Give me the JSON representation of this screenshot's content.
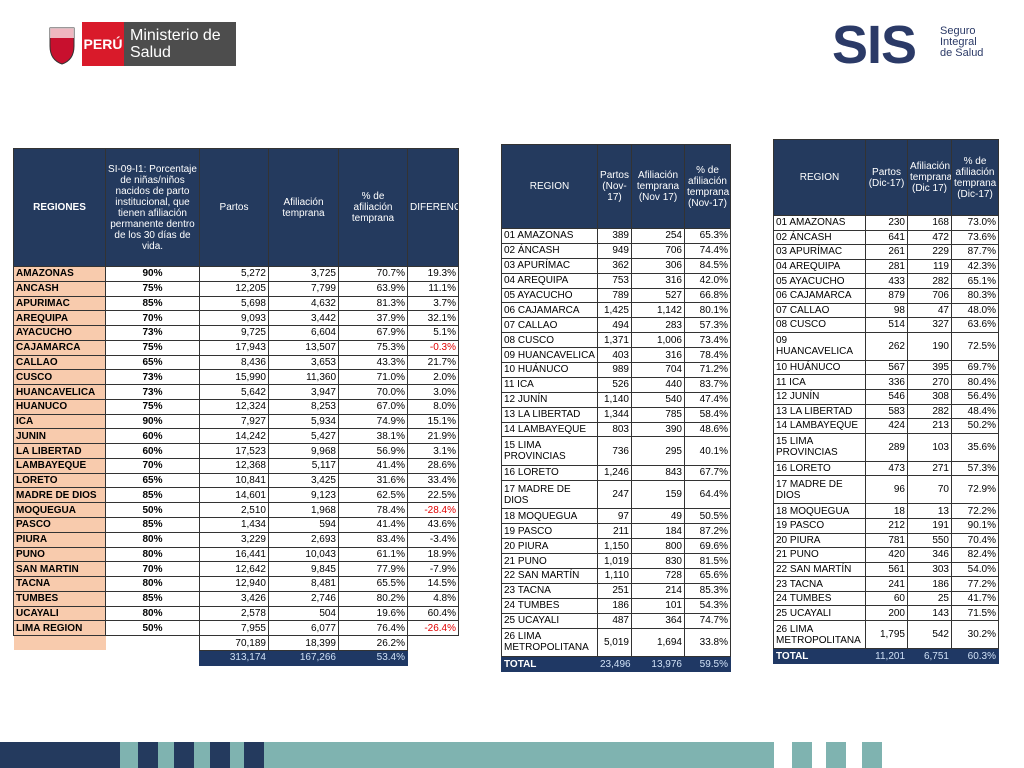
{
  "header": {
    "country": "PERÚ",
    "ministry": "Ministerio de Salud",
    "sis": "SIS",
    "sis_name": "Seguro Integral de Salud"
  },
  "tables": [
    {
      "header": [
        "REGIONES",
        "SI-09-I1: Porcentaje de niñas/niños nacidos de parto institucional, que tienen afiliación permanente dentro de los 30 días de vida.",
        "Partos",
        "Afiliación temprana",
        "% de afiliación temprana",
        "DIFERENCIA"
      ],
      "highlight_rows": [
        5,
        16,
        24
      ],
      "rows": [
        [
          "AMAZONAS",
          "90%",
          "5,272",
          "3,725",
          "70.7%",
          "19.3%"
        ],
        [
          "ANCASH",
          "75%",
          "12,205",
          "7,799",
          "63.9%",
          "11.1%"
        ],
        [
          "APURIMAC",
          "85%",
          "5,698",
          "4,632",
          "81.3%",
          "3.7%"
        ],
        [
          "AREQUIPA",
          "70%",
          "9,093",
          "3,442",
          "37.9%",
          "32.1%"
        ],
        [
          "AYACUCHO",
          "73%",
          "9,725",
          "6,604",
          "67.9%",
          "5.1%"
        ],
        [
          "CAJAMARCA",
          "75%",
          "17,943",
          "13,507",
          "75.3%",
          "-0.3%"
        ],
        [
          "CALLAO",
          "65%",
          "8,436",
          "3,653",
          "43.3%",
          "21.7%"
        ],
        [
          "CUSCO",
          "73%",
          "15,990",
          "11,360",
          "71.0%",
          "2.0%"
        ],
        [
          "HUANCAVELICA",
          "73%",
          "5,642",
          "3,947",
          "70.0%",
          "3.0%"
        ],
        [
          "HUANUCO",
          "75%",
          "12,324",
          "8,253",
          "67.0%",
          "8.0%"
        ],
        [
          "ICA",
          "90%",
          "7,927",
          "5,934",
          "74.9%",
          "15.1%"
        ],
        [
          "JUNIN",
          "60%",
          "14,242",
          "5,427",
          "38.1%",
          "21.9%"
        ],
        [
          "LA LIBERTAD",
          "60%",
          "17,523",
          "9,968",
          "56.9%",
          "3.1%"
        ],
        [
          "LAMBAYEQUE",
          "70%",
          "12,368",
          "5,117",
          "41.4%",
          "28.6%"
        ],
        [
          "LORETO",
          "65%",
          "10,841",
          "3,425",
          "31.6%",
          "33.4%"
        ],
        [
          "MADRE DE DIOS",
          "85%",
          "14,601",
          "9,123",
          "62.5%",
          "22.5%"
        ],
        [
          "MOQUEGUA",
          "50%",
          "2,510",
          "1,968",
          "78.4%",
          "-28.4%"
        ],
        [
          "PASCO",
          "85%",
          "1,434",
          "594",
          "41.4%",
          "43.6%"
        ],
        [
          "PIURA",
          "80%",
          "3,229",
          "2,693",
          "83.4%",
          "-3.4%"
        ],
        [
          "PUNO",
          "80%",
          "16,441",
          "10,043",
          "61.1%",
          "18.9%"
        ],
        [
          "SAN MARTIN",
          "70%",
          "12,642",
          "9,845",
          "77.9%",
          "-7.9%"
        ],
        [
          "TACNA",
          "80%",
          "12,940",
          "8,481",
          "65.5%",
          "14.5%"
        ],
        [
          "TUMBES",
          "85%",
          "3,426",
          "2,746",
          "80.2%",
          "4.8%"
        ],
        [
          "UCAYALI",
          "80%",
          "2,578",
          "504",
          "19.6%",
          "60.4%"
        ],
        [
          "LIMA REGION",
          "50%",
          "7,955",
          "6,077",
          "76.4%",
          "-26.4%"
        ],
        [
          null,
          null,
          "70,189",
          "18,399",
          "26.2%",
          null
        ]
      ],
      "total": [
        null,
        null,
        "313,174",
        "167,266",
        "53.4%",
        null
      ]
    },
    {
      "header": [
        "REGION",
        "Partos (Nov-17)",
        "Afiliación temprana (Nov 17)",
        "% de afiliación temprana (Nov-17)"
      ],
      "rows": [
        [
          "01 AMAZONAS",
          "389",
          "254",
          "65.3%"
        ],
        [
          "02 ÁNCASH",
          "949",
          "706",
          "74.4%"
        ],
        [
          "03 APURÍMAC",
          "362",
          "306",
          "84.5%"
        ],
        [
          "04 AREQUIPA",
          "753",
          "316",
          "42.0%"
        ],
        [
          "05 AYACUCHO",
          "789",
          "527",
          "66.8%"
        ],
        [
          "06 CAJAMARCA",
          "1,425",
          "1,142",
          "80.1%"
        ],
        [
          "07 CALLAO",
          "494",
          "283",
          "57.3%"
        ],
        [
          "08 CUSCO",
          "1,371",
          "1,006",
          "73.4%"
        ],
        [
          "09 HUANCAVELICA",
          "403",
          "316",
          "78.4%"
        ],
        [
          "10 HUÁNUCO",
          "989",
          "704",
          "71.2%"
        ],
        [
          "11 ICA",
          "526",
          "440",
          "83.7%"
        ],
        [
          "12 JUNÍN",
          "1,140",
          "540",
          "47.4%"
        ],
        [
          "13 LA LIBERTAD",
          "1,344",
          "785",
          "58.4%"
        ],
        [
          "14 LAMBAYEQUE",
          "803",
          "390",
          "48.6%"
        ],
        [
          "15 LIMA PROVINCIAS",
          "736",
          "295",
          "40.1%"
        ],
        [
          "16 LORETO",
          "1,246",
          "843",
          "67.7%"
        ],
        [
          "17 MADRE DE DIOS",
          "247",
          "159",
          "64.4%"
        ],
        [
          "18 MOQUEGUA",
          "97",
          "49",
          "50.5%"
        ],
        [
          "19 PASCO",
          "211",
          "184",
          "87.2%"
        ],
        [
          "20 PIURA",
          "1,150",
          "800",
          "69.6%"
        ],
        [
          "21 PUNO",
          "1,019",
          "830",
          "81.5%"
        ],
        [
          "22 SAN MARTÍN",
          "1,110",
          "728",
          "65.6%"
        ],
        [
          "23 TACNA",
          "251",
          "214",
          "85.3%"
        ],
        [
          "24 TUMBES",
          "186",
          "101",
          "54.3%"
        ],
        [
          "25 UCAYALI",
          "487",
          "364",
          "74.7%"
        ],
        [
          "26 LIMA METROPOLITANA",
          "5,019",
          "1,694",
          "33.8%"
        ]
      ],
      "total": [
        "TOTAL",
        "23,496",
        "13,976",
        "59.5%"
      ]
    },
    {
      "header": [
        "REGION",
        "Partos (Dic-17)",
        "Afiliación temprana (Dic 17)",
        "% de afiliación temprana (Dic-17)"
      ],
      "rows": [
        [
          "01 AMAZONAS",
          "230",
          "168",
          "73.0%"
        ],
        [
          "02 ÁNCASH",
          "641",
          "472",
          "73.6%"
        ],
        [
          "03 APURÍMAC",
          "261",
          "229",
          "87.7%"
        ],
        [
          "04 AREQUIPA",
          "281",
          "119",
          "42.3%"
        ],
        [
          "05 AYACUCHO",
          "433",
          "282",
          "65.1%"
        ],
        [
          "06 CAJAMARCA",
          "879",
          "706",
          "80.3%"
        ],
        [
          "07 CALLAO",
          "98",
          "47",
          "48.0%"
        ],
        [
          "08 CUSCO",
          "514",
          "327",
          "63.6%"
        ],
        [
          "09 HUANCAVELICA",
          "262",
          "190",
          "72.5%"
        ],
        [
          "10 HUÁNUCO",
          "567",
          "395",
          "69.7%"
        ],
        [
          "11 ICA",
          "336",
          "270",
          "80.4%"
        ],
        [
          "12 JUNÍN",
          "546",
          "308",
          "56.4%"
        ],
        [
          "13 LA LIBERTAD",
          "583",
          "282",
          "48.4%"
        ],
        [
          "14 LAMBAYEQUE",
          "424",
          "213",
          "50.2%"
        ],
        [
          "15 LIMA PROVINCIAS",
          "289",
          "103",
          "35.6%"
        ],
        [
          "16 LORETO",
          "473",
          "271",
          "57.3%"
        ],
        [
          "17 MADRE DE DIOS",
          "96",
          "70",
          "72.9%"
        ],
        [
          "18 MOQUEGUA",
          "18",
          "13",
          "72.2%"
        ],
        [
          "19 PASCO",
          "212",
          "191",
          "90.1%"
        ],
        [
          "20 PIURA",
          "781",
          "550",
          "70.4%"
        ],
        [
          "21 PUNO",
          "420",
          "346",
          "82.4%"
        ],
        [
          "22 SAN MARTÍN",
          "561",
          "303",
          "54.0%"
        ],
        [
          "23 TACNA",
          "241",
          "186",
          "77.2%"
        ],
        [
          "24 TUMBES",
          "60",
          "25",
          "41.7%"
        ],
        [
          "25 UCAYALI",
          "200",
          "143",
          "71.5%"
        ],
        [
          "26 LIMA METROPOLITANA",
          "1,795",
          "542",
          "30.2%"
        ]
      ],
      "total": [
        "TOTAL",
        "11,201",
        "6,751",
        "60.3%"
      ]
    }
  ]
}
